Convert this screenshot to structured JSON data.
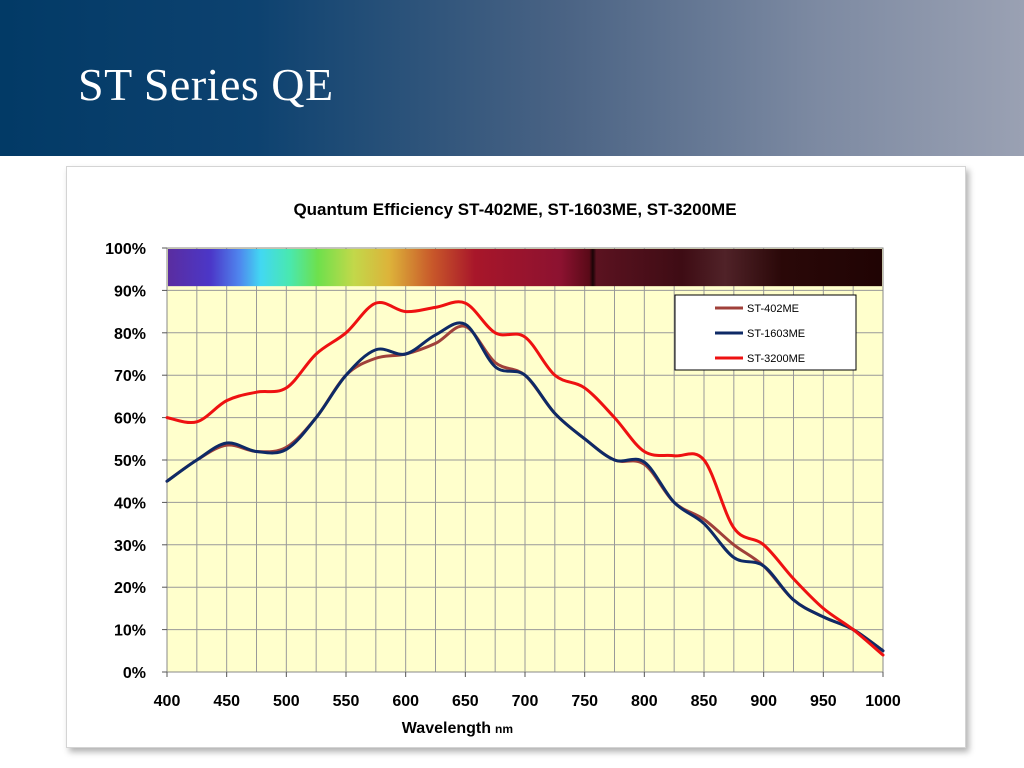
{
  "slide": {
    "title": "ST Series QE"
  },
  "colors": {
    "header_dark": "#023a66",
    "header_light": "#9aa1b3",
    "plot_background": "#ffffcc",
    "grid": "#999999"
  },
  "chart_data": {
    "type": "line",
    "title": "Quantum Efficiency ST-402ME, ST-1603ME, ST-3200ME",
    "xlabel": "Wavelength",
    "xlabel_unit": "nm",
    "ylabel": "",
    "xlim": [
      400,
      1000
    ],
    "ylim": [
      0,
      100
    ],
    "x_ticks": [
      400,
      450,
      500,
      550,
      600,
      650,
      700,
      750,
      800,
      850,
      900,
      950,
      1000
    ],
    "y_ticks": [
      "0%",
      "10%",
      "20%",
      "30%",
      "40%",
      "50%",
      "60%",
      "70%",
      "80%",
      "90%",
      "100%"
    ],
    "grid": true,
    "legend_position": "top-right",
    "spectrum_band": {
      "from_percent": 91,
      "to_percent": 100
    },
    "x": [
      400,
      425,
      450,
      475,
      500,
      525,
      550,
      575,
      600,
      625,
      650,
      675,
      700,
      725,
      750,
      775,
      800,
      825,
      850,
      875,
      900,
      925,
      950,
      975,
      1000
    ],
    "series": [
      {
        "name": "ST-402ME",
        "color": "#a0403a",
        "values": [
          45,
          50,
          53.5,
          52,
          53,
          60,
          70,
          74,
          75,
          77.5,
          81.5,
          73,
          70,
          61,
          55,
          50,
          49,
          40,
          36,
          30,
          25,
          17,
          13,
          10,
          5
        ]
      },
      {
        "name": "ST-1603ME",
        "color": "#0e2a66",
        "values": [
          45,
          50,
          54,
          52,
          52.5,
          60,
          70,
          76,
          75,
          79.5,
          82,
          72,
          70,
          61,
          55,
          50,
          49.5,
          40,
          35,
          27,
          25,
          17,
          13,
          10,
          5
        ]
      },
      {
        "name": "ST-3200ME",
        "color": "#ee1111",
        "values": [
          60,
          59,
          64,
          66,
          67,
          75,
          80,
          87,
          85,
          86,
          87,
          80,
          79,
          70,
          67,
          60,
          52,
          51,
          50,
          34,
          30,
          22,
          15,
          10,
          4
        ]
      }
    ]
  }
}
